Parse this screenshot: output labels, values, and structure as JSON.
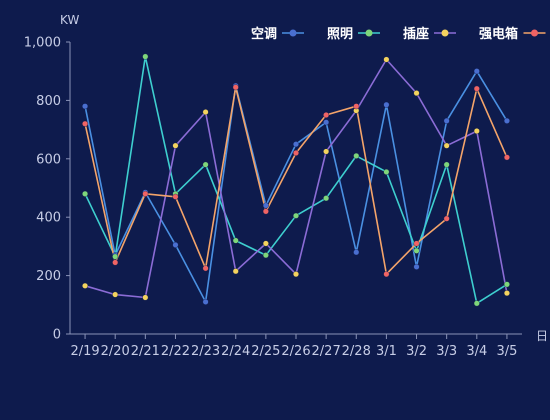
{
  "chart_data": {
    "type": "line",
    "ylabel": "KW",
    "xlabel": "日",
    "ylim": [
      0,
      1000
    ],
    "yticks": [
      0,
      200,
      400,
      600,
      800,
      1000
    ],
    "ytick_labels": [
      "0",
      "200",
      "400",
      "600",
      "800",
      "1,000"
    ],
    "categories": [
      "2/19",
      "2/20",
      "2/21",
      "2/22",
      "2/23",
      "2/24",
      "2/25",
      "2/26",
      "2/27",
      "2/28",
      "3/1",
      "3/2",
      "3/3",
      "3/4",
      "3/5"
    ],
    "grid": false,
    "legend_position": "top-right",
    "series": [
      {
        "name": "空调",
        "line_color": "#4a90e2",
        "dot_color": "#4a6fd0",
        "values": [
          780,
          270,
          485,
          305,
          110,
          850,
          440,
          650,
          725,
          280,
          785,
          230,
          730,
          900,
          730
        ]
      },
      {
        "name": "照明",
        "line_color": "#3ecfcf",
        "dot_color": "#7fd67a",
        "values": [
          480,
          265,
          950,
          480,
          580,
          320,
          270,
          405,
          465,
          610,
          555,
          285,
          580,
          105,
          170
        ]
      },
      {
        "name": "插座",
        "line_color": "#8b6cd6",
        "dot_color": "#f4d35e",
        "values": [
          165,
          135,
          125,
          645,
          760,
          215,
          310,
          205,
          625,
          765,
          940,
          825,
          645,
          695,
          140
        ]
      },
      {
        "name": "强电箱",
        "line_color": "#f4a46a",
        "dot_color": "#f06464",
        "values": [
          720,
          245,
          480,
          470,
          225,
          845,
          420,
          620,
          750,
          780,
          205,
          310,
          395,
          840,
          605
        ]
      }
    ]
  }
}
